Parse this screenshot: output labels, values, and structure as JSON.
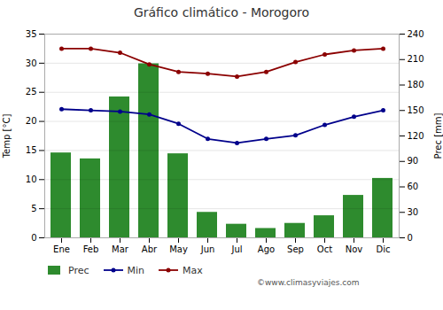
{
  "chart_data": {
    "type": "combo",
    "title": "Gráfico climático - Morogoro",
    "categories": [
      "Ene",
      "Feb",
      "Mar",
      "Abr",
      "May",
      "Jun",
      "Jul",
      "Ago",
      "Sep",
      "Oct",
      "Nov",
      "Dic"
    ],
    "series": [
      {
        "name": "Prec",
        "type": "bar",
        "axis": "y2",
        "color": "#2e8b2e",
        "values": [
          100,
          93,
          166,
          205,
          99,
          30,
          16,
          11,
          17,
          26,
          50,
          70
        ]
      },
      {
        "name": "Min",
        "type": "line",
        "color": "#00008b",
        "marker": "circle",
        "line_style": "solid",
        "values": [
          22.1,
          21.9,
          21.7,
          21.2,
          19.6,
          17.0,
          16.3,
          17.0,
          17.6,
          19.4,
          20.8,
          21.9
        ]
      },
      {
        "name": "Max",
        "type": "line",
        "color": "#8b0000",
        "marker": "circle",
        "line_style": "solid",
        "values": [
          32.5,
          32.5,
          31.8,
          29.8,
          28.5,
          28.2,
          27.7,
          28.5,
          30.2,
          31.5,
          32.2,
          32.5
        ]
      }
    ],
    "ylabel": "Temp [°C]",
    "y2label": "Prec [mm]",
    "ylim": [
      0,
      35
    ],
    "yticks": [
      0,
      5,
      10,
      15,
      20,
      25,
      30,
      35
    ],
    "y2lim": [
      0,
      240
    ],
    "y2ticks": [
      0,
      30,
      60,
      90,
      120,
      150,
      180,
      210,
      240
    ],
    "grid": true,
    "legend": "bottom",
    "annotations": [
      "©www.climasyviajes.com"
    ]
  }
}
